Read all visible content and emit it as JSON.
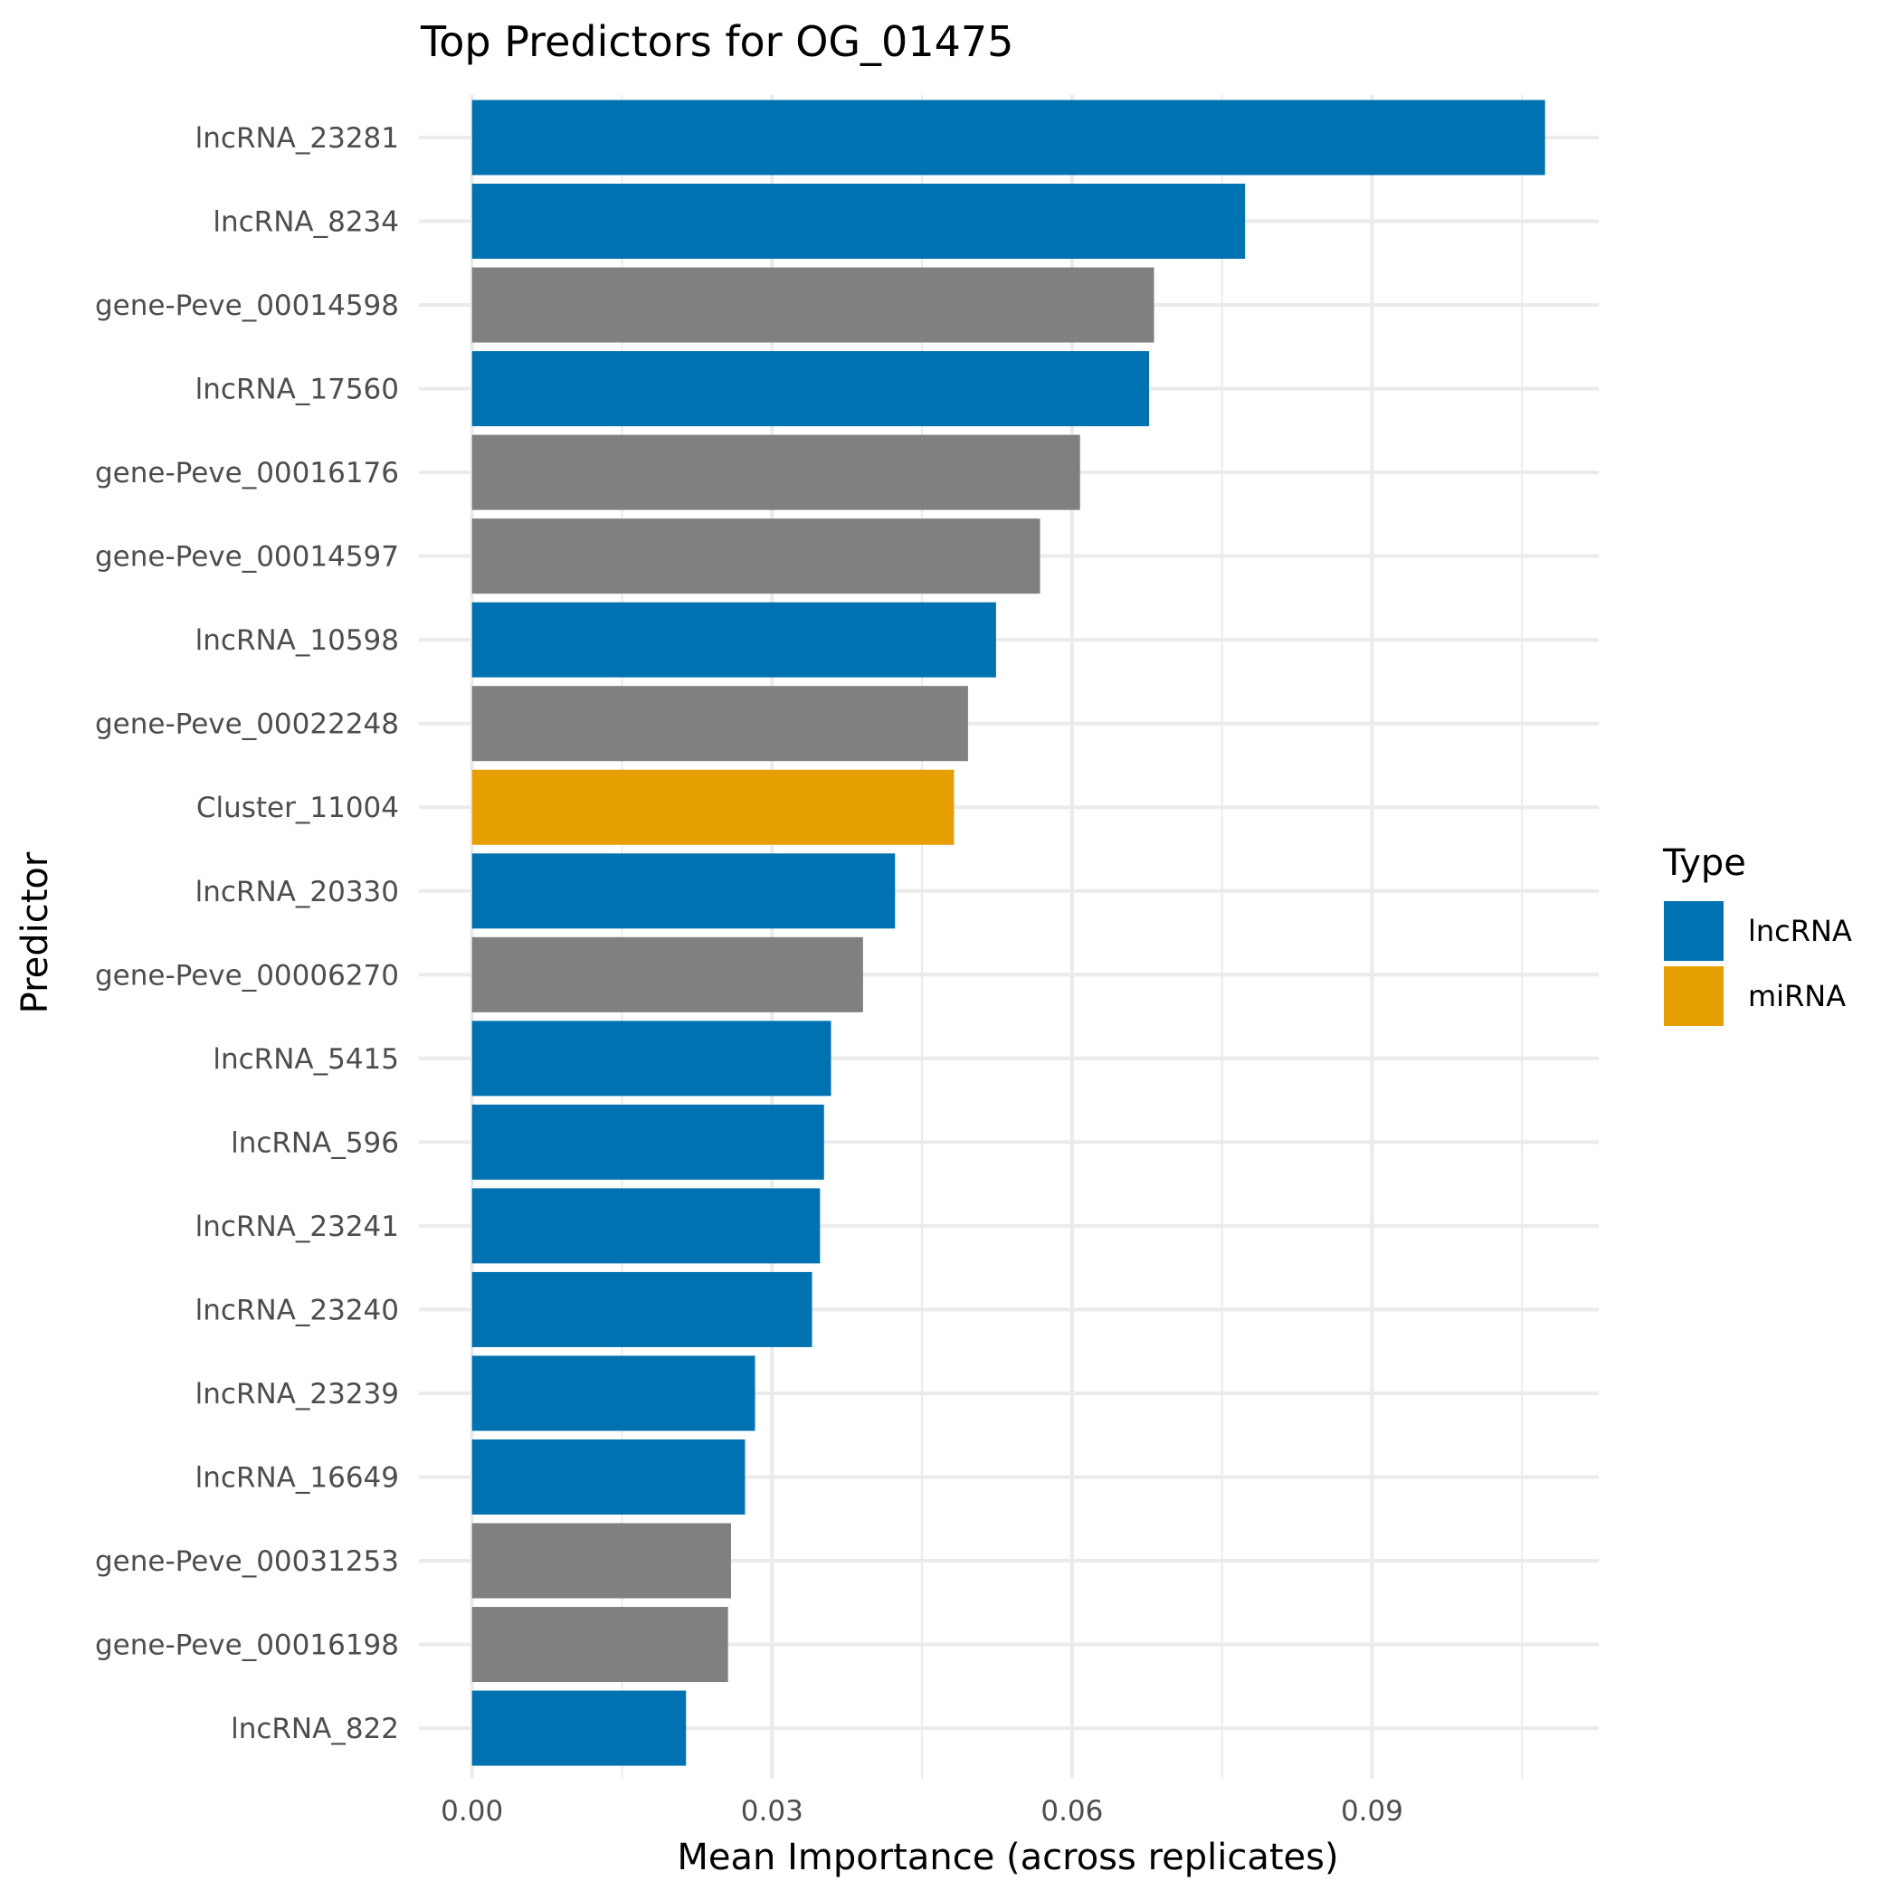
{
  "chart_data": {
    "type": "bar",
    "orientation": "horizontal",
    "title": "Top Predictors for OG_01475",
    "xlabel": "Mean Importance (across replicates)",
    "ylabel": "Predictor",
    "xlim": [
      0,
      0.1125
    ],
    "x_ticks": [
      0.0,
      0.03,
      0.06,
      0.09
    ],
    "x_tick_labels": [
      "0.00",
      "0.03",
      "0.06",
      "0.09"
    ],
    "x_minor_ticks": [
      0.015,
      0.045,
      0.075,
      0.105
    ],
    "grid": true,
    "legend": {
      "title": "Type",
      "position": "right",
      "entries": [
        {
          "label": "lncRNA",
          "color": "#0072B2"
        },
        {
          "label": "miRNA",
          "color": "#E69F00"
        }
      ]
    },
    "colors": {
      "lncRNA": "#0072B2",
      "miRNA": "#E69F00",
      "NA": "#808080"
    },
    "categories": [
      "lncRNA_23281",
      "lncRNA_8234",
      "gene-Peve_00014598",
      "lncRNA_17560",
      "gene-Peve_00016176",
      "gene-Peve_00014597",
      "lncRNA_10598",
      "gene-Peve_00022248",
      "Cluster_11004",
      "lncRNA_20330",
      "gene-Peve_00006270",
      "lncRNA_5415",
      "lncRNA_596",
      "lncRNA_23241",
      "lncRNA_23240",
      "lncRNA_23239",
      "lncRNA_16649",
      "gene-Peve_00031253",
      "gene-Peve_00016198",
      "lncRNA_822"
    ],
    "values": [
      0.1073,
      0.0773,
      0.0682,
      0.0677,
      0.0608,
      0.0568,
      0.0524,
      0.0496,
      0.0482,
      0.0423,
      0.0391,
      0.0359,
      0.0352,
      0.0348,
      0.034,
      0.0283,
      0.0273,
      0.0259,
      0.0256,
      0.0214
    ],
    "types": [
      "lncRNA",
      "lncRNA",
      "NA",
      "lncRNA",
      "NA",
      "NA",
      "lncRNA",
      "NA",
      "miRNA",
      "lncRNA",
      "NA",
      "lncRNA",
      "lncRNA",
      "lncRNA",
      "lncRNA",
      "lncRNA",
      "lncRNA",
      "NA",
      "NA",
      "lncRNA"
    ]
  }
}
